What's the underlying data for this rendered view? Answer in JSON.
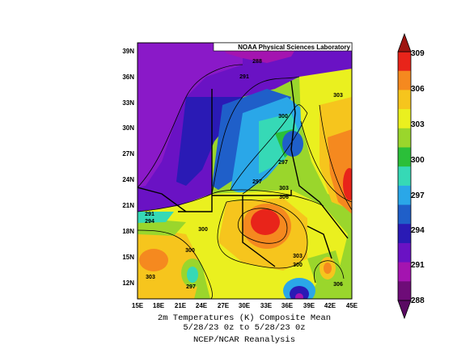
{
  "credit": "NOAA Physical Sciences Laboratory",
  "caption": {
    "line1": "2m Temperatures (K)   Composite Mean",
    "line2": "5/28/23 0z  to 5/28/23 0z",
    "line3": "NCEP/NCAR Reanalysis"
  },
  "axes": {
    "lon_ticks": [
      "15E",
      "18E",
      "21E",
      "24E",
      "27E",
      "30E",
      "33E",
      "36E",
      "39E",
      "42E",
      "45E"
    ],
    "lat_ticks": [
      "39N",
      "36N",
      "33N",
      "30N",
      "27N",
      "24N",
      "21N",
      "18N",
      "15N",
      "12N"
    ]
  },
  "colorbar": {
    "labels": [
      "309",
      "306",
      "303",
      "300",
      "297",
      "294",
      "291",
      "288"
    ],
    "colors": [
      "#e8241a",
      "#f5891f",
      "#f6c51d",
      "#eaf01f",
      "#9ad62c",
      "#2bbf39",
      "#36d9b6",
      "#2aa7e8",
      "#1f5fc9",
      "#2a1ab5",
      "#6a12c4",
      "#a414b0",
      "#6e0c78"
    ]
  },
  "contour_labels": [
    "288",
    "291",
    "303",
    "300",
    "297",
    "297",
    "303",
    "306",
    "291",
    "294",
    "300",
    "300",
    "303",
    "303",
    "300",
    "306",
    "297"
  ]
}
